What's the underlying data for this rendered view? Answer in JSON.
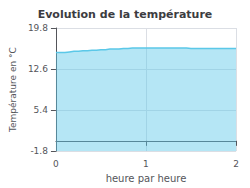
{
  "chart_data": {
    "type": "line",
    "title": "Evolution de la température",
    "xlabel": "heure par heure",
    "ylabel": "Température en °C",
    "x": [
      0.0,
      0.05,
      0.1,
      0.15,
      0.2,
      0.25,
      0.3,
      0.35,
      0.4,
      0.45,
      0.5,
      0.55,
      0.6,
      0.65,
      0.7,
      0.75,
      0.8,
      0.85,
      0.9,
      0.95,
      1.0,
      1.05,
      1.1,
      1.15,
      1.2,
      1.25,
      1.3,
      1.35,
      1.4,
      1.45,
      1.5,
      1.55,
      1.6,
      1.65,
      1.7,
      1.75,
      1.8,
      1.85,
      1.9,
      1.95,
      2.0
    ],
    "values": [
      15.5,
      15.5,
      15.6,
      15.7,
      15.7,
      15.8,
      15.8,
      15.9,
      15.9,
      16.0,
      16.0,
      16.1,
      16.1,
      16.1,
      16.2,
      16.2,
      16.3,
      16.3,
      16.3,
      16.3,
      16.3,
      16.3,
      16.3,
      16.3,
      16.3,
      16.3,
      16.3,
      16.3,
      16.3,
      16.2,
      16.2,
      16.2,
      16.2,
      16.2,
      16.2,
      16.2,
      16.2,
      16.2,
      16.2,
      16.2,
      16.1
    ],
    "color": "#5bc8e8",
    "xlim": [
      0,
      2.0
    ],
    "xticks": [
      0,
      1,
      2
    ],
    "ylim": [
      -1.8,
      19.8
    ],
    "yticks": [
      -1.8,
      5.4,
      12.6,
      19.8
    ],
    "grid": true
  }
}
